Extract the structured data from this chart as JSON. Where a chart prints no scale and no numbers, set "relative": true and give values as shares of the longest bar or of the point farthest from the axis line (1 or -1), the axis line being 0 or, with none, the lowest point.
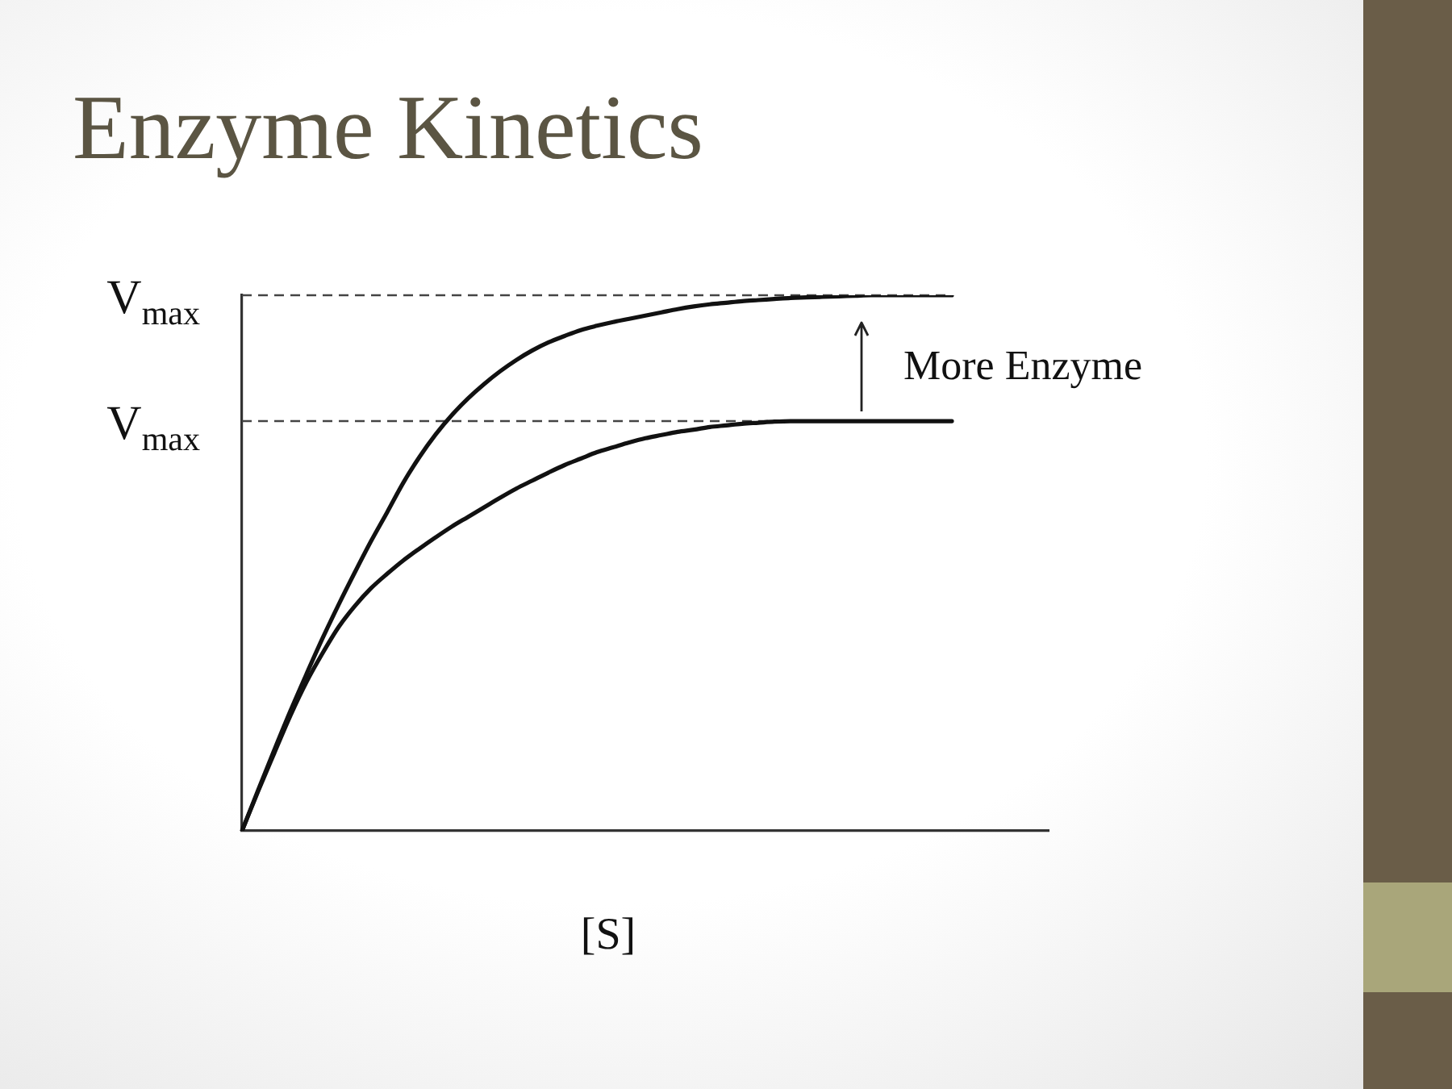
{
  "chart_data": {
    "type": "line",
    "title": "Enzyme Kinetics",
    "xlabel": "[S]",
    "categories": [
      null,
      null,
      null,
      null,
      null,
      null,
      null,
      null,
      null,
      null,
      null,
      null,
      null,
      null,
      null,
      null,
      null,
      null,
      null,
      null,
      null,
      null,
      null,
      null,
      null,
      null,
      null,
      null,
      null,
      null,
      null,
      null,
      null,
      null,
      null,
      null,
      null,
      null,
      null,
      null,
      null,
      null,
      null,
      null,
      null,
      null,
      null,
      null,
      null,
      null,
      null
    ],
    "relative": true,
    "series": [
      {
        "color": "#111111",
        "values": [
          0,
          0.076,
          0.151,
          0.224,
          0.293,
          0.36,
          0.423,
          0.483,
          0.541,
          0.595,
          0.65,
          0.698,
          0.74,
          0.776,
          0.807,
          0.834,
          0.858,
          0.879,
          0.897,
          0.912,
          0.924,
          0.935,
          0.943,
          0.95,
          0.956,
          0.962,
          0.968,
          0.974,
          0.979,
          0.983,
          0.986,
          0.989,
          0.991,
          0.993,
          0.995,
          0.996,
          0.997,
          0.998,
          0.999,
          1,
          1,
          1,
          1,
          1,
          1,
          null,
          null,
          null,
          null,
          null,
          null
        ]
      },
      {
        "color": "#111111",
        "values": [
          0,
          0.074,
          0.145,
          0.215,
          0.278,
          0.332,
          0.381,
          0.42,
          0.453,
          0.48,
          0.505,
          0.527,
          0.548,
          0.568,
          0.586,
          0.604,
          0.622,
          0.639,
          0.654,
          0.669,
          0.683,
          0.695,
          0.707,
          0.716,
          0.725,
          0.733,
          0.739,
          0.745,
          0.749,
          0.754,
          0.757,
          0.76,
          0.762,
          0.764,
          0.765,
          0.765,
          0.765,
          0.765,
          0.765,
          0.765,
          0.765,
          0.765,
          0.765,
          0.765,
          0.765,
          null,
          null,
          null,
          null,
          null,
          null
        ]
      }
    ],
    "ref_lines": [
      {
        "axis": "y",
        "value": 1,
        "label": "V$_{max}$",
        "color": "#444444",
        "line_style": "dashed"
      },
      {
        "axis": "y",
        "value": 0.765,
        "label": "V$_{max}$",
        "color": "#444444",
        "line_style": "dashed"
      }
    ],
    "annotations": [
      "More Enzyme"
    ]
  }
}
